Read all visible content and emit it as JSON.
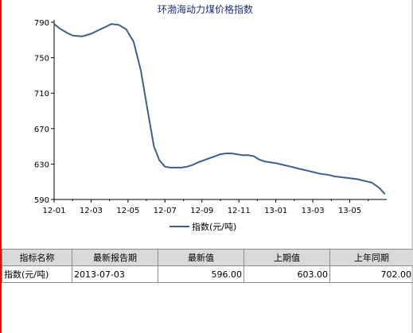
{
  "chart_data": {
    "type": "line",
    "title": "环渤海动力煤价格指数",
    "ylim": [
      590,
      790
    ],
    "yticks": [
      "790",
      "750",
      "710",
      "670",
      "630",
      "590"
    ],
    "xticks": [
      "12-01",
      "12-03",
      "12-05",
      "12-07",
      "12-09",
      "12-11",
      "13-01",
      "13-03",
      "13-05"
    ],
    "legend_position": "bottom",
    "grid": false,
    "series": [
      {
        "name": "指数(元/吨)",
        "color": "#3c5f8c",
        "x": [
          0.0,
          0.3,
          0.7,
          1.0,
          1.5,
          2.0,
          2.5,
          2.8,
          3.1,
          3.5,
          3.9,
          4.3,
          4.7,
          5.1,
          5.4,
          5.7,
          6.0,
          6.3,
          6.6,
          6.9,
          7.2,
          7.5,
          7.8,
          8.2,
          8.6,
          9.0,
          9.3,
          9.6,
          9.9,
          10.2,
          10.5,
          10.8,
          11.1,
          11.4,
          11.7,
          12.0,
          12.4,
          12.8,
          13.2,
          13.6,
          14.0,
          14.4,
          14.8,
          15.2,
          15.6,
          16.0,
          16.4,
          16.8,
          17.2,
          17.6,
          17.9
        ],
        "values": [
          788,
          783,
          778,
          775,
          774,
          777,
          782,
          785,
          788,
          787,
          782,
          768,
          735,
          686,
          650,
          634,
          627,
          626,
          626,
          626,
          627,
          629,
          632,
          635,
          638,
          641,
          642,
          642,
          641,
          640,
          640,
          639,
          635,
          633,
          632,
          631,
          629,
          627,
          625,
          623,
          621,
          619,
          618,
          616,
          615,
          614,
          613,
          611,
          609,
          603,
          596
        ]
      }
    ]
  },
  "table": {
    "headers": [
      "指标名称",
      "最新报告期",
      "最新值",
      "上期值",
      "上年同期"
    ],
    "row": [
      "指数(元/吨)",
      "2013-07-03",
      "596.00",
      "603.00",
      "702.00"
    ]
  }
}
